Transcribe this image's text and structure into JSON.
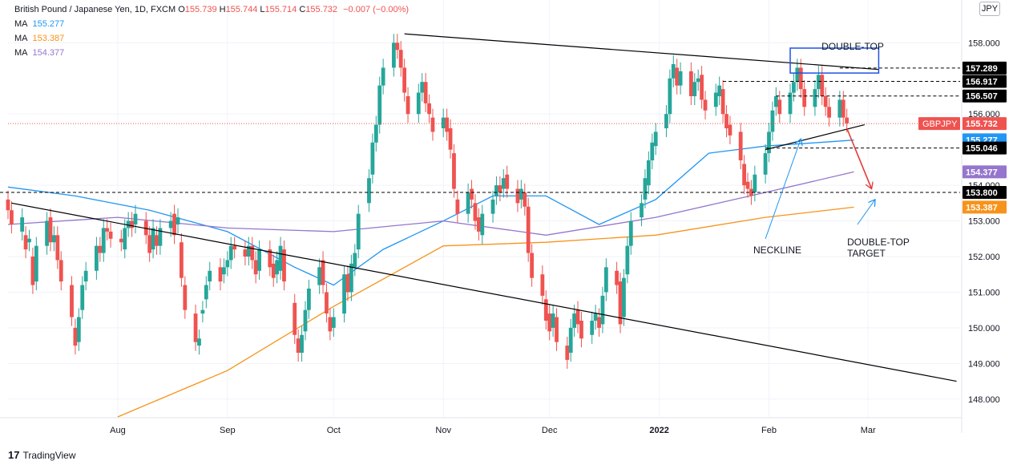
{
  "header": {
    "title": "British Pound / Japanese Yen, 1D, FXCM",
    "ohlc": [
      {
        "label": "O",
        "value": "155.739"
      },
      {
        "label": "H",
        "value": "155.744"
      },
      {
        "label": "L",
        "value": "155.714"
      },
      {
        "label": "C",
        "value": "155.732"
      }
    ],
    "change": "−0.007 (−0.00%)",
    "change_color": "#ef5350",
    "currency_button": "JPY"
  },
  "moving_averages": [
    {
      "label": "MA",
      "value": "155.277",
      "color": "#2196f3"
    },
    {
      "label": "MA",
      "value": "153.387",
      "color": "#f7931a"
    },
    {
      "label": "MA",
      "value": "154.377",
      "color": "#9575cd"
    }
  ],
  "branding": {
    "name": "TradingView",
    "icon": "tradingview-logo-icon"
  },
  "chart_data": {
    "type": "candlestick",
    "symbol": "GBPJPY",
    "ylim": [
      147.5,
      159.2
    ],
    "y_ticks": [
      "148.000",
      "149.000",
      "150.000",
      "151.000",
      "152.000",
      "153.000",
      "154.000",
      "156.000",
      "158.000"
    ],
    "x_ticks": [
      {
        "label": "Aug",
        "date": "2021-08-01"
      },
      {
        "label": "Sep",
        "date": "2021-09-01"
      },
      {
        "label": "Oct",
        "date": "2021-10-01"
      },
      {
        "label": "Nov",
        "date": "2021-11-01"
      },
      {
        "label": "Dec",
        "date": "2021-12-01"
      },
      {
        "label": "2022",
        "date": "2022-01-01"
      },
      {
        "label": "Feb",
        "date": "2022-02-01"
      },
      {
        "label": "Mar",
        "date": "2022-03-01"
      }
    ],
    "colors": {
      "up": "#26a69a",
      "down": "#ef5350"
    },
    "price_labels": [
      {
        "value": "157.289",
        "bg": "#000000",
        "fg": "#ffffff"
      },
      {
        "value": "156.917",
        "bg": "#000000",
        "fg": "#ffffff"
      },
      {
        "value": "156.507",
        "bg": "#000000",
        "fg": "#ffffff"
      },
      {
        "value": "155.732",
        "bg": "#ef5350",
        "fg": "#ffffff",
        "tag": "GBPJPY"
      },
      {
        "value": "155.277",
        "bg": "#2196f3",
        "fg": "#ffffff"
      },
      {
        "value": "155.046",
        "bg": "#000000",
        "fg": "#ffffff"
      },
      {
        "value": "154.377",
        "bg": "#9575cd",
        "fg": "#ffffff"
      },
      {
        "value": "153.800",
        "bg": "#000000",
        "fg": "#ffffff"
      },
      {
        "value": "153.387",
        "bg": "#f7931a",
        "fg": "#ffffff"
      }
    ],
    "horizontal_levels": [
      157.289,
      156.917,
      156.507,
      155.046,
      153.8
    ],
    "last_price": 155.732,
    "annotations": [
      {
        "text": "DOUBLE-TOP"
      },
      {
        "text": "NECKLINE"
      },
      {
        "text": "DOUBLE-TOP"
      },
      {
        "text": "TARGET"
      }
    ],
    "trendlines": [
      {
        "from": [
          "2021-10-21",
          158.25
        ],
        "to": [
          "2022-03-04",
          157.25
        ]
      },
      {
        "from": [
          "2021-07-02",
          153.5
        ],
        "to": [
          "2022-03-26",
          148.5
        ]
      },
      {
        "from": [
          "2022-01-31",
          155.0
        ],
        "to": [
          "2022-02-28",
          155.7
        ]
      }
    ],
    "box": {
      "from": [
        "2022-02-07",
        157.85
      ],
      "to": [
        "2022-03-04",
        157.15
      ]
    },
    "red_arrow": {
      "from": [
        "2022-02-23",
        155.6
      ],
      "to": [
        "2022-03-02",
        153.9
      ]
    },
    "blue_arrows": [
      {
        "from": [
          "2022-01-31",
          152.5
        ],
        "to": [
          "2022-02-10",
          155.3
        ]
      },
      {
        "from": [
          "2022-02-26",
          152.9
        ],
        "to": [
          "2022-03-03",
          153.6
        ]
      }
    ],
    "ma_series": [
      {
        "name": "MA 155.277",
        "color": "#2196f3",
        "points": [
          [
            "2021-07-01",
            153.95
          ],
          [
            "2021-07-20",
            153.7
          ],
          [
            "2021-08-10",
            153.3
          ],
          [
            "2021-09-01",
            152.7
          ],
          [
            "2021-09-20",
            151.7
          ],
          [
            "2021-10-01",
            151.2
          ],
          [
            "2021-10-15",
            152.2
          ],
          [
            "2021-11-01",
            153.0
          ],
          [
            "2021-11-15",
            153.7
          ],
          [
            "2021-11-30",
            153.7
          ],
          [
            "2021-12-15",
            152.9
          ],
          [
            "2021-12-31",
            153.6
          ],
          [
            "2022-01-15",
            154.9
          ],
          [
            "2022-01-31",
            155.1
          ],
          [
            "2022-02-15",
            155.2
          ],
          [
            "2022-02-25",
            155.27
          ]
        ]
      },
      {
        "name": "MA 153.387",
        "color": "#f7931a",
        "points": [
          [
            "2021-08-01",
            147.5
          ],
          [
            "2021-09-01",
            148.8
          ],
          [
            "2021-10-01",
            150.6
          ],
          [
            "2021-11-01",
            152.3
          ],
          [
            "2021-11-30",
            152.4
          ],
          [
            "2021-12-31",
            152.6
          ],
          [
            "2022-01-31",
            153.1
          ],
          [
            "2022-02-25",
            153.387
          ]
        ]
      },
      {
        "name": "MA 154.377",
        "color": "#9575cd",
        "points": [
          [
            "2021-07-01",
            152.9
          ],
          [
            "2021-08-01",
            153.1
          ],
          [
            "2021-09-01",
            152.8
          ],
          [
            "2021-10-01",
            152.7
          ],
          [
            "2021-11-01",
            153.0
          ],
          [
            "2021-11-30",
            152.6
          ],
          [
            "2021-12-31",
            153.1
          ],
          [
            "2022-01-31",
            153.8
          ],
          [
            "2022-02-25",
            154.377
          ]
        ]
      }
    ],
    "candles": [
      [
        "2021-07-01",
        153.6,
        153.3
      ],
      [
        "2021-07-02",
        153.3,
        152.9
      ],
      [
        "2021-07-05",
        152.7,
        153.1
      ],
      [
        "2021-07-06",
        152.6,
        152.2
      ],
      [
        "2021-07-07",
        152.4,
        152.5
      ],
      [
        "2021-07-08",
        152.0,
        151.2
      ],
      [
        "2021-07-09",
        151.3,
        152.3
      ],
      [
        "2021-07-12",
        152.3,
        153.0
      ],
      [
        "2021-07-13",
        153.1,
        152.4
      ],
      [
        "2021-07-14",
        152.4,
        152.6
      ],
      [
        "2021-07-15",
        152.6,
        151.9
      ],
      [
        "2021-07-16",
        151.9,
        151.3
      ],
      [
        "2021-07-19",
        151.2,
        150.3
      ],
      [
        "2021-07-20",
        150.0,
        149.5
      ],
      [
        "2021-07-21",
        149.6,
        150.3
      ],
      [
        "2021-07-22",
        150.5,
        151.2
      ],
      [
        "2021-07-23",
        151.3,
        151.6
      ],
      [
        "2021-07-26",
        151.6,
        152.3
      ],
      [
        "2021-07-27",
        152.3,
        152.1
      ],
      [
        "2021-07-28",
        152.1,
        152.8
      ],
      [
        "2021-07-29",
        152.8,
        152.7
      ],
      [
        "2021-07-30",
        152.7,
        152.5
      ],
      [
        "2021-08-02",
        152.5,
        152.4
      ],
      [
        "2021-08-03",
        152.2,
        152.8
      ],
      [
        "2021-08-04",
        152.8,
        153.0
      ],
      [
        "2021-08-05",
        153.0,
        152.8
      ],
      [
        "2021-08-06",
        152.9,
        153.2
      ],
      [
        "2021-08-09",
        153.0,
        152.6
      ],
      [
        "2021-08-10",
        152.6,
        152.1
      ],
      [
        "2021-08-11",
        152.2,
        152.8
      ],
      [
        "2021-08-12",
        152.6,
        152.3
      ],
      [
        "2021-08-13",
        152.3,
        152.8
      ],
      [
        "2021-08-16",
        152.8,
        153.0
      ],
      [
        "2021-08-17",
        153.2,
        152.6
      ],
      [
        "2021-08-18",
        152.9,
        153.1
      ],
      [
        "2021-08-19",
        152.4,
        151.4
      ],
      [
        "2021-08-20",
        151.2,
        150.5
      ],
      [
        "2021-08-23",
        150.4,
        149.6
      ],
      [
        "2021-08-24",
        149.5,
        149.7
      ],
      [
        "2021-08-25",
        150.4,
        150.5
      ],
      [
        "2021-08-26",
        150.8,
        151.2
      ],
      [
        "2021-08-27",
        151.3,
        151.6
      ],
      [
        "2021-08-30",
        151.7,
        151.3
      ],
      [
        "2021-08-31",
        151.5,
        151.7
      ],
      [
        "2021-09-01",
        151.7,
        151.9
      ],
      [
        "2021-09-02",
        151.9,
        152.3
      ],
      [
        "2021-09-03",
        152.3,
        152.2
      ],
      [
        "2021-09-06",
        152.2,
        152.0
      ],
      [
        "2021-09-07",
        152.0,
        152.3
      ],
      [
        "2021-09-08",
        152.3,
        151.9
      ],
      [
        "2021-09-09",
        151.9,
        151.5
      ],
      [
        "2021-09-10",
        151.6,
        152.2
      ],
      [
        "2021-09-13",
        152.2,
        151.7
      ],
      [
        "2021-09-14",
        151.8,
        151.4
      ],
      [
        "2021-09-15",
        151.5,
        151.9
      ],
      [
        "2021-09-16",
        151.6,
        152.3
      ],
      [
        "2021-09-17",
        152.2,
        151.3
      ],
      [
        "2021-09-20",
        150.7,
        149.8
      ],
      [
        "2021-09-21",
        149.7,
        149.3
      ],
      [
        "2021-09-22",
        149.3,
        149.8
      ],
      [
        "2021-09-23",
        149.9,
        150.5
      ],
      [
        "2021-09-24",
        150.5,
        151.1
      ],
      [
        "2021-09-27",
        151.2,
        151.7
      ],
      [
        "2021-09-28",
        151.9,
        151.2
      ],
      [
        "2021-09-29",
        151.0,
        150.4
      ],
      [
        "2021-09-30",
        150.3,
        149.9
      ],
      [
        "2021-10-01",
        150.0,
        150.3
      ],
      [
        "2021-10-04",
        150.4,
        151.5
      ],
      [
        "2021-10-05",
        151.5,
        151.0
      ],
      [
        "2021-10-06",
        151.0,
        151.8
      ],
      [
        "2021-10-07",
        151.7,
        152.1
      ],
      [
        "2021-10-08",
        152.2,
        153.2
      ],
      [
        "2021-10-11",
        153.5,
        154.2
      ],
      [
        "2021-10-12",
        154.3,
        155.2
      ],
      [
        "2021-10-13",
        155.2,
        155.7
      ],
      [
        "2021-10-14",
        155.7,
        156.8
      ],
      [
        "2021-10-15",
        156.8,
        157.3
      ],
      [
        "2021-10-18",
        157.3,
        158.0
      ],
      [
        "2021-10-19",
        158.0,
        157.8
      ],
      [
        "2021-10-20",
        157.8,
        157.3
      ],
      [
        "2021-10-21",
        157.3,
        156.6
      ],
      [
        "2021-10-22",
        156.5,
        156.0
      ],
      [
        "2021-10-25",
        156.0,
        156.6
      ],
      [
        "2021-10-26",
        156.6,
        156.9
      ],
      [
        "2021-10-27",
        156.9,
        156.3
      ],
      [
        "2021-10-28",
        156.3,
        156.0
      ],
      [
        "2021-10-29",
        155.9,
        155.5
      ],
      [
        "2021-11-01",
        155.6,
        155.9
      ],
      [
        "2021-11-02",
        155.9,
        155.5
      ],
      [
        "2021-11-03",
        155.6,
        155.0
      ],
      [
        "2021-11-04",
        154.9,
        153.9
      ],
      [
        "2021-11-05",
        153.6,
        153.2
      ],
      [
        "2021-11-08",
        153.2,
        153.8
      ],
      [
        "2021-11-09",
        153.9,
        153.6
      ],
      [
        "2021-11-10",
        153.5,
        153.0
      ],
      [
        "2021-11-11",
        153.1,
        152.7
      ],
      [
        "2021-11-12",
        152.6,
        153.2
      ],
      [
        "2021-11-15",
        153.2,
        153.6
      ],
      [
        "2021-11-16",
        153.7,
        154.0
      ],
      [
        "2021-11-17",
        154.0,
        153.8
      ],
      [
        "2021-11-18",
        153.9,
        154.2
      ],
      [
        "2021-11-19",
        154.3,
        153.9
      ],
      [
        "2021-11-22",
        153.9,
        153.5
      ],
      [
        "2021-11-23",
        153.6,
        153.9
      ],
      [
        "2021-11-24",
        153.8,
        153.4
      ],
      [
        "2021-11-25",
        153.4,
        152.1
      ],
      [
        "2021-11-26",
        152.1,
        151.4
      ],
      [
        "2021-11-29",
        151.5,
        150.9
      ],
      [
        "2021-11-30",
        150.8,
        150.2
      ],
      [
        "2021-12-01",
        150.4,
        149.9
      ],
      [
        "2021-12-02",
        150.0,
        150.4
      ],
      [
        "2021-12-03",
        150.3,
        149.6
      ],
      [
        "2021-12-06",
        149.5,
        149.1
      ],
      [
        "2021-12-07",
        149.3,
        150.0
      ],
      [
        "2021-12-08",
        150.0,
        150.4
      ],
      [
        "2021-12-09",
        150.5,
        150.1
      ],
      [
        "2021-12-10",
        150.2,
        149.7
      ],
      [
        "2021-12-13",
        149.8,
        150.2
      ],
      [
        "2021-12-14",
        150.2,
        150.4
      ],
      [
        "2021-12-15",
        150.3,
        150.0
      ],
      [
        "2021-12-16",
        150.1,
        150.9
      ],
      [
        "2021-12-17",
        151.0,
        151.7
      ],
      [
        "2021-12-20",
        151.6,
        151.2
      ],
      [
        "2021-12-21",
        151.3,
        150.1
      ],
      [
        "2021-12-22",
        150.3,
        151.4
      ],
      [
        "2021-12-23",
        151.5,
        152.3
      ],
      [
        "2021-12-24",
        152.3,
        153.0
      ],
      [
        "2021-12-27",
        153.1,
        153.5
      ],
      [
        "2021-12-28",
        153.6,
        154.2
      ],
      [
        "2021-12-29",
        154.0,
        154.7
      ],
      [
        "2021-12-30",
        154.7,
        155.2
      ],
      [
        "2021-12-31",
        155.1,
        155.5
      ],
      [
        "2022-01-03",
        155.6,
        156.0
      ],
      [
        "2022-01-04",
        156.0,
        157.0
      ],
      [
        "2022-01-05",
        157.0,
        157.4
      ],
      [
        "2022-01-06",
        157.3,
        156.8
      ],
      [
        "2022-01-07",
        156.8,
        157.2
      ],
      [
        "2022-01-10",
        157.2,
        156.5
      ],
      [
        "2022-01-11",
        156.5,
        156.9
      ],
      [
        "2022-01-12",
        156.9,
        157.0
      ],
      [
        "2022-01-13",
        157.1,
        156.4
      ],
      [
        "2022-01-14",
        156.4,
        156.1
      ],
      [
        "2022-01-17",
        156.2,
        156.6
      ],
      [
        "2022-01-18",
        156.5,
        156.8
      ],
      [
        "2022-01-19",
        156.7,
        156.0
      ],
      [
        "2022-01-20",
        156.0,
        155.6
      ],
      [
        "2022-01-21",
        155.7,
        155.4
      ],
      [
        "2022-01-24",
        155.5,
        154.7
      ],
      [
        "2022-01-25",
        154.6,
        154.0
      ],
      [
        "2022-01-26",
        154.1,
        153.9
      ],
      [
        "2022-01-27",
        153.9,
        153.7
      ],
      [
        "2022-01-28",
        153.8,
        154.3
      ],
      [
        "2022-01-31",
        154.3,
        154.9
      ],
      [
        "2022-02-01",
        154.9,
        155.5
      ],
      [
        "2022-02-02",
        155.5,
        156.1
      ],
      [
        "2022-02-03",
        156.2,
        156.5
      ],
      [
        "2022-02-04",
        156.4,
        156.0
      ],
      [
        "2022-02-07",
        156.0,
        156.6
      ],
      [
        "2022-02-08",
        156.6,
        156.9
      ],
      [
        "2022-02-09",
        156.9,
        157.3
      ],
      [
        "2022-02-10",
        157.3,
        156.7
      ],
      [
        "2022-02-11",
        156.7,
        156.2
      ],
      [
        "2022-02-14",
        156.2,
        156.7
      ],
      [
        "2022-02-15",
        156.7,
        157.1
      ],
      [
        "2022-02-16",
        157.1,
        156.5
      ],
      [
        "2022-02-17",
        156.5,
        156.2
      ],
      [
        "2022-02-18",
        156.2,
        155.9
      ],
      [
        "2022-02-21",
        155.9,
        156.4
      ],
      [
        "2022-02-22",
        156.4,
        155.9
      ],
      [
        "2022-02-23",
        155.9,
        155.739
      ]
    ]
  }
}
